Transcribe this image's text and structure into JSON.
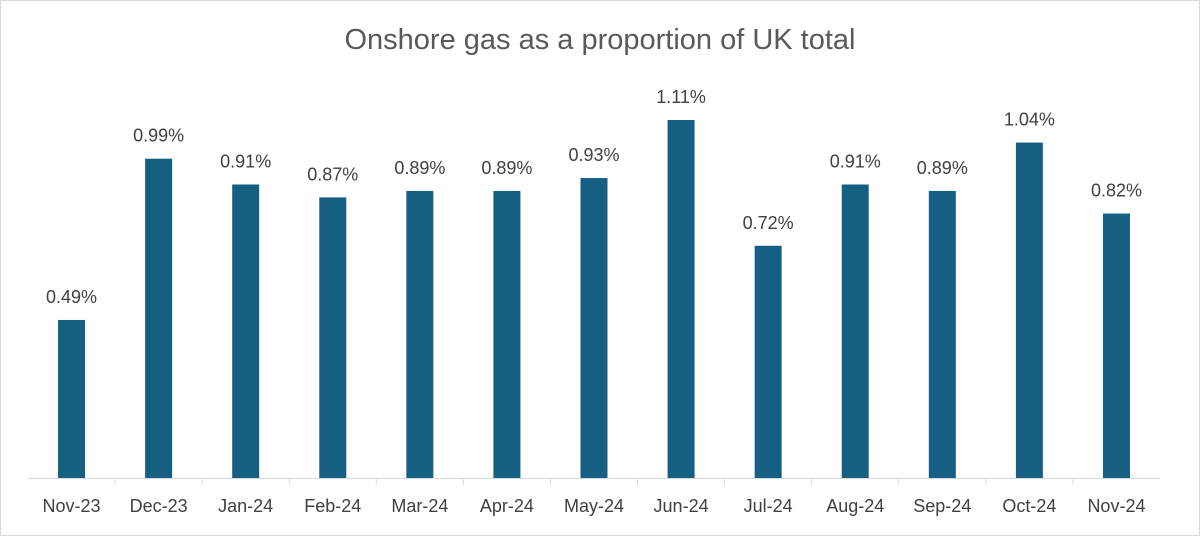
{
  "chart_data": {
    "type": "bar",
    "title": "Onshore gas as a proportion of UK total",
    "categories": [
      "Nov-23",
      "Dec-23",
      "Jan-24",
      "Feb-24",
      "Mar-24",
      "Apr-24",
      "May-24",
      "Jun-24",
      "Jul-24",
      "Aug-24",
      "Sep-24",
      "Oct-24",
      "Nov-24"
    ],
    "values": [
      0.49,
      0.99,
      0.91,
      0.87,
      0.89,
      0.89,
      0.93,
      1.11,
      0.72,
      0.91,
      0.89,
      1.04,
      0.82
    ],
    "data_labels": [
      "0.49%",
      "0.99%",
      "0.91%",
      "0.87%",
      "0.89%",
      "0.89%",
      "0.93%",
      "1.11%",
      "0.72%",
      "0.91%",
      "0.89%",
      "1.04%",
      "0.82%"
    ],
    "xlabel": "",
    "ylabel": "",
    "ylim": [
      0,
      1.11
    ],
    "grid": false,
    "legend": "none",
    "bar_color": "#156082",
    "axis_color": "#d9d9d9"
  }
}
